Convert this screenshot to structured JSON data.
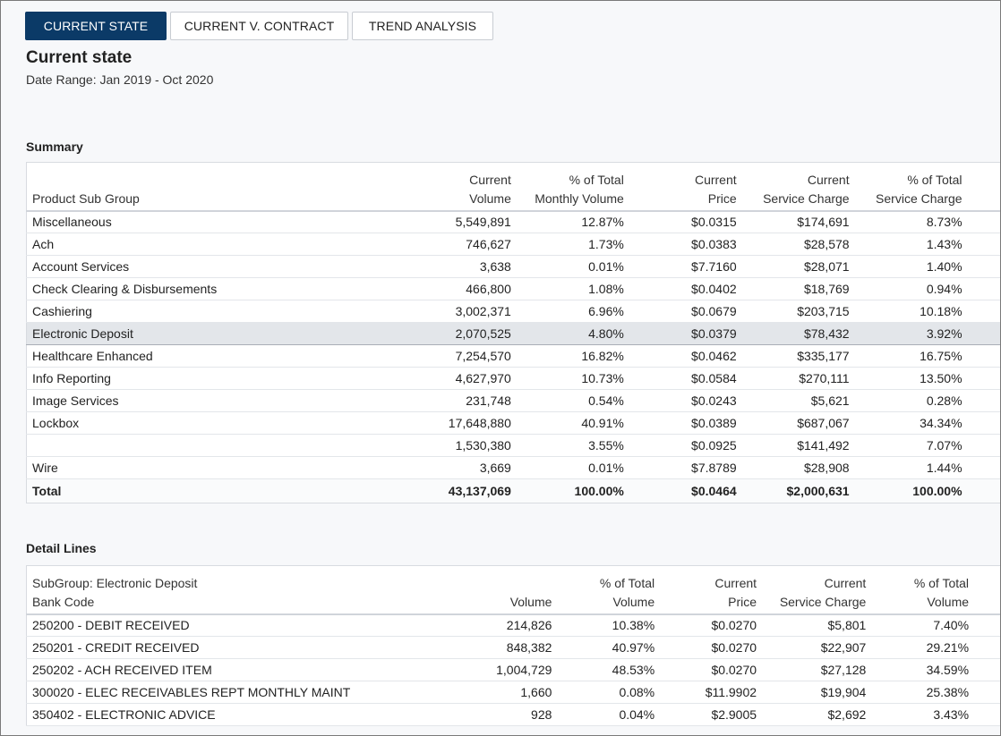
{
  "tabs": [
    {
      "label": "CURRENT STATE",
      "active": true
    },
    {
      "label": "CURRENT V. CONTRACT",
      "active": false
    },
    {
      "label": "TREND ANALYSIS",
      "active": false
    }
  ],
  "page": {
    "title": "Current state",
    "date_range": "Date Range: Jan 2019 - Oct 2020"
  },
  "summary": {
    "section_title": "Summary",
    "header_top": [
      "",
      "Current",
      "% of Total",
      "Current",
      "Current",
      "% of Total"
    ],
    "header_bottom": [
      "Product Sub Group",
      "Volume",
      "Monthly Volume",
      "Price",
      "Service Charge",
      "Service Charge"
    ],
    "rows": [
      [
        "Miscellaneous",
        "5,549,891",
        "12.87%",
        "$0.0315",
        "$174,691",
        "8.73%"
      ],
      [
        "Ach",
        "746,627",
        "1.73%",
        "$0.0383",
        "$28,578",
        "1.43%"
      ],
      [
        "Account Services",
        "3,638",
        "0.01%",
        "$7.7160",
        "$28,071",
        "1.40%"
      ],
      [
        "Check Clearing & Disbursements",
        "466,800",
        "1.08%",
        "$0.0402",
        "$18,769",
        "0.94%"
      ],
      [
        "Cashiering",
        "3,002,371",
        "6.96%",
        "$0.0679",
        "$203,715",
        "10.18%"
      ],
      [
        "Electronic Deposit",
        "2,070,525",
        "4.80%",
        "$0.0379",
        "$78,432",
        "3.92%"
      ],
      [
        "Healthcare Enhanced",
        "7,254,570",
        "16.82%",
        "$0.0462",
        "$335,177",
        "16.75%"
      ],
      [
        "Info Reporting",
        "4,627,970",
        "10.73%",
        "$0.0584",
        "$270,111",
        "13.50%"
      ],
      [
        "Image Services",
        "231,748",
        "0.54%",
        "$0.0243",
        "$5,621",
        "0.28%"
      ],
      [
        "Lockbox",
        "17,648,880",
        "40.91%",
        "$0.0389",
        "$687,067",
        "34.34%"
      ],
      [
        "",
        "1,530,380",
        "3.55%",
        "$0.0925",
        "$141,492",
        "7.07%"
      ],
      [
        "Wire",
        "3,669",
        "0.01%",
        "$7.8789",
        "$28,908",
        "1.44%"
      ]
    ],
    "total": [
      "Total",
      "43,137,069",
      "100.00%",
      "$0.0464",
      "$2,000,631",
      "100.00%"
    ]
  },
  "detail": {
    "section_title": "Detail Lines",
    "header_top": [
      "SubGroup: Electronic Deposit",
      "",
      "% of Total",
      "Current",
      "Current",
      "% of Total"
    ],
    "header_bottom": [
      "Bank Code",
      "Volume",
      "Volume",
      "Price",
      "Service Charge",
      "Volume"
    ],
    "rows": [
      [
        "250200 - DEBIT RECEIVED",
        "214,826",
        "10.38%",
        "$0.0270",
        "$5,801",
        "7.40%"
      ],
      [
        "250201 - CREDIT RECEIVED",
        "848,382",
        "40.97%",
        "$0.0270",
        "$22,907",
        "29.21%"
      ],
      [
        "250202 - ACH RECEIVED ITEM",
        "1,004,729",
        "48.53%",
        "$0.0270",
        "$27,128",
        "34.59%"
      ],
      [
        "300020 - ELEC RECEIVABLES REPT MONTHLY MAINT",
        "1,660",
        "0.08%",
        "$11.9902",
        "$19,904",
        "25.38%"
      ],
      [
        "350402 - ELECTRONIC ADVICE",
        "928",
        "0.04%",
        "$2.9005",
        "$2,692",
        "3.43%"
      ]
    ]
  }
}
